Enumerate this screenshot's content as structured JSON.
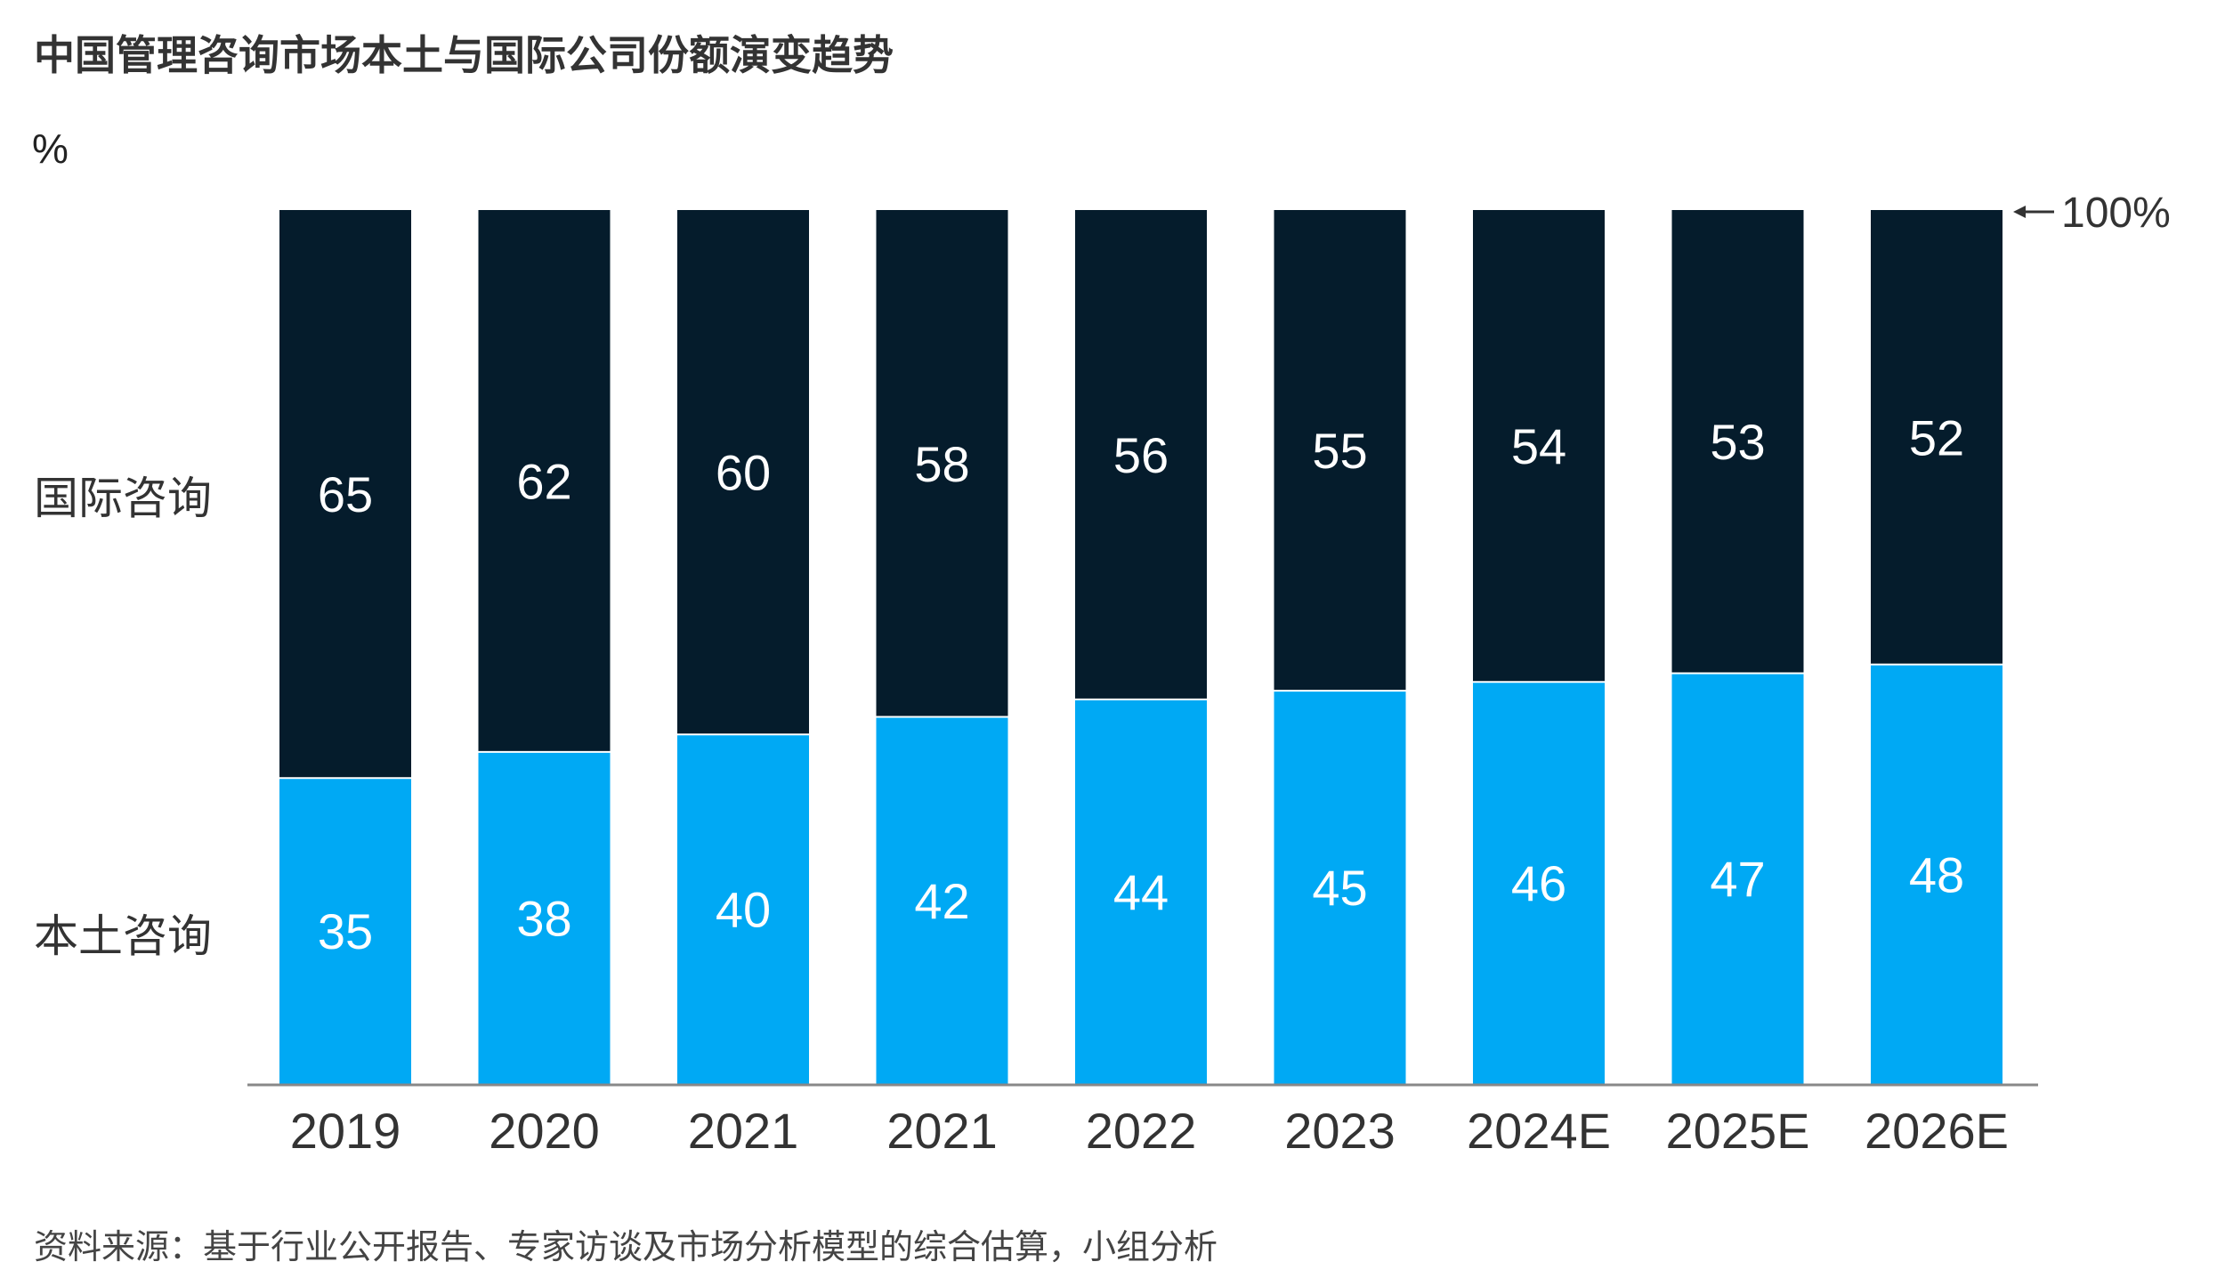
{
  "chart_data": {
    "type": "bar",
    "stacked": true,
    "title": "中国管理咨询市场本土与国际公司份额演变趋势",
    "unit": "%",
    "categories": [
      "2019",
      "2020",
      "2021",
      "2021",
      "2022",
      "2023",
      "2024E",
      "2025E",
      "2026E"
    ],
    "series": [
      {
        "name": "本土咨询",
        "color": "#00A9F4",
        "values": [
          35,
          38,
          40,
          42,
          44,
          45,
          46,
          47,
          48
        ]
      },
      {
        "name": "国际咨询",
        "color": "#051C2C",
        "values": [
          65,
          62,
          60,
          58,
          56,
          55,
          54,
          53,
          52
        ]
      }
    ],
    "ylim": [
      0,
      100
    ],
    "max_annotation": "100%",
    "source": "资料来源：基于行业公开报告、专家访谈及市场分析模型的综合估算，小组分析"
  }
}
